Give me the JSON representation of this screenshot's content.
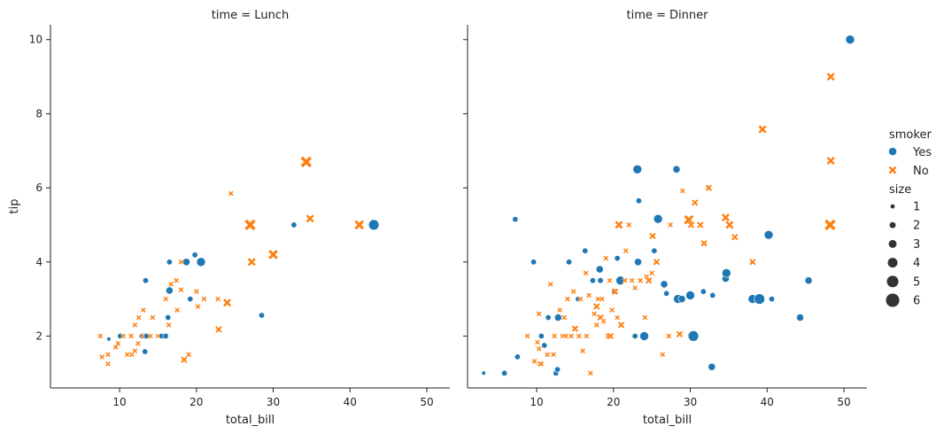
{
  "chart_data": {
    "type": "scatter",
    "x_label": "total_bill",
    "y_label": "tip",
    "x_range": [
      1,
      53
    ],
    "y_range": [
      0.6,
      10.4
    ],
    "x_ticks": [
      "10",
      "20",
      "30",
      "40",
      "50"
    ],
    "y_ticks": [
      "2",
      "4",
      "6",
      "8",
      "10"
    ],
    "colors": {
      "Yes": "#1f77b4",
      "No": "#ff7f0e"
    },
    "legend": {
      "hue_title": "smoker",
      "hue_entries": [
        "Yes",
        "No"
      ],
      "size_title": "size",
      "size_entries": [
        "1",
        "2",
        "3",
        "4",
        "5",
        "6"
      ]
    },
    "panels": [
      {
        "title": "time = Lunch",
        "points": [
          [
            7.5,
            2,
            "No",
            2
          ],
          [
            7.7,
            1.44,
            "No",
            2
          ],
          [
            8.5,
            1.25,
            "No",
            2
          ],
          [
            8.5,
            1.5,
            "No",
            2
          ],
          [
            8.6,
            1.92,
            "Yes",
            1
          ],
          [
            9.5,
            1.7,
            "No",
            2
          ],
          [
            9.8,
            1.8,
            "No",
            2
          ],
          [
            10.1,
            2,
            "Yes",
            2
          ],
          [
            10.5,
            2,
            "No",
            2
          ],
          [
            11,
            1.5,
            "No",
            2
          ],
          [
            11.5,
            2,
            "No",
            2
          ],
          [
            11.6,
            1.5,
            "No",
            2
          ],
          [
            12,
            1.6,
            "No",
            2
          ],
          [
            12,
            2.3,
            "No",
            2
          ],
          [
            12.4,
            1.8,
            "No",
            2
          ],
          [
            12.5,
            2.5,
            "No",
            2
          ],
          [
            12.9,
            2,
            "Yes",
            2
          ],
          [
            13,
            2,
            "No",
            2
          ],
          [
            13.1,
            2.7,
            "No",
            2
          ],
          [
            13.3,
            1.58,
            "Yes",
            2
          ],
          [
            13.4,
            3.5,
            "Yes",
            2
          ],
          [
            13.5,
            2,
            "Yes",
            2
          ],
          [
            14,
            2,
            "No",
            2
          ],
          [
            14.3,
            2.5,
            "No",
            2
          ],
          [
            15,
            2,
            "No",
            2
          ],
          [
            15.5,
            2,
            "Yes",
            2
          ],
          [
            16,
            2,
            "Yes",
            2
          ],
          [
            16,
            3,
            "No",
            2
          ],
          [
            16.3,
            2.5,
            "Yes",
            2
          ],
          [
            16.4,
            2.3,
            "No",
            2
          ],
          [
            16.5,
            4,
            "Yes",
            2
          ],
          [
            16.5,
            3.23,
            "Yes",
            3
          ],
          [
            16.7,
            3.4,
            "No",
            2
          ],
          [
            17.4,
            3.5,
            "No",
            2
          ],
          [
            17.5,
            2.7,
            "No",
            2
          ],
          [
            18,
            4,
            "No",
            2
          ],
          [
            18,
            3.25,
            "No",
            2
          ],
          [
            18.4,
            1.36,
            "No",
            3
          ],
          [
            18.7,
            4,
            "Yes",
            3
          ],
          [
            19,
            1.5,
            "No",
            2
          ],
          [
            19.2,
            3,
            "Yes",
            2
          ],
          [
            19.8,
            4.19,
            "Yes",
            2
          ],
          [
            20,
            3.2,
            "No",
            2
          ],
          [
            20.2,
            2.8,
            "No",
            2
          ],
          [
            20.6,
            4,
            "Yes",
            4
          ],
          [
            21,
            3,
            "No",
            2
          ],
          [
            22.8,
            3,
            "No",
            2
          ],
          [
            22.9,
            2.18,
            "No",
            3
          ],
          [
            24,
            2.9,
            "No",
            4
          ],
          [
            24.5,
            5.85,
            "No",
            2
          ],
          [
            27,
            5,
            "No",
            6
          ],
          [
            27.2,
            4,
            "No",
            4
          ],
          [
            28.5,
            2.56,
            "Yes",
            2
          ],
          [
            30,
            4.2,
            "No",
            5
          ],
          [
            32.7,
            5,
            "Yes",
            2
          ],
          [
            34.3,
            6.7,
            "No",
            6
          ],
          [
            34.8,
            5.17,
            "No",
            4
          ],
          [
            41.2,
            5,
            "No",
            5
          ],
          [
            43.1,
            5,
            "Yes",
            5
          ]
        ]
      },
      {
        "title": "time = Dinner",
        "points": [
          [
            3.1,
            1,
            "Yes",
            1
          ],
          [
            5.8,
            1,
            "Yes",
            2
          ],
          [
            7.2,
            5.15,
            "Yes",
            2
          ],
          [
            7.5,
            1.44,
            "Yes",
            2
          ],
          [
            8.8,
            2,
            "No",
            2
          ],
          [
            9.6,
            4,
            "Yes",
            2
          ],
          [
            9.7,
            1.32,
            "No",
            2
          ],
          [
            10.3,
            1.66,
            "No",
            2
          ],
          [
            10.4,
            1.25,
            "No",
            2
          ],
          [
            10.6,
            1.25,
            "No",
            2
          ],
          [
            10.1,
            1.83,
            "No",
            2
          ],
          [
            10.3,
            2.6,
            "No",
            2
          ],
          [
            10.6,
            2,
            "Yes",
            2
          ],
          [
            11,
            1.75,
            "Yes",
            2
          ],
          [
            11.4,
            1.5,
            "No",
            2
          ],
          [
            11.5,
            2.5,
            "Yes",
            2
          ],
          [
            11.8,
            3.4,
            "No",
            2
          ],
          [
            12.2,
            1.5,
            "No",
            2
          ],
          [
            12.3,
            2,
            "No",
            2
          ],
          [
            12.5,
            1,
            "Yes",
            2
          ],
          [
            12.7,
            1.1,
            "Yes",
            2
          ],
          [
            12.8,
            2.5,
            "Yes",
            3
          ],
          [
            13,
            2.7,
            "No",
            2
          ],
          [
            13.4,
            2,
            "No",
            2
          ],
          [
            13.6,
            2.5,
            "No",
            2
          ],
          [
            13.8,
            2,
            "No",
            2
          ],
          [
            14,
            3,
            "No",
            2
          ],
          [
            14.2,
            4,
            "Yes",
            2
          ],
          [
            14.5,
            2,
            "No",
            2
          ],
          [
            14.8,
            3.2,
            "No",
            2
          ],
          [
            15,
            2.2,
            "No",
            3
          ],
          [
            15.4,
            3,
            "Yes",
            2
          ],
          [
            15.5,
            2,
            "No",
            2
          ],
          [
            15.7,
            3,
            "No",
            2
          ],
          [
            16,
            1.6,
            "No",
            2
          ],
          [
            16.3,
            4.3,
            "Yes",
            2
          ],
          [
            16.4,
            3.7,
            "No",
            2
          ],
          [
            16.5,
            2,
            "No",
            2
          ],
          [
            16.8,
            3.1,
            "No",
            2
          ],
          [
            17,
            1.0,
            "No",
            2
          ],
          [
            17.3,
            3.5,
            "Yes",
            2
          ],
          [
            17.5,
            2.6,
            "No",
            2
          ],
          [
            17.8,
            2.3,
            "No",
            2
          ],
          [
            17.8,
            2.8,
            "No",
            3
          ],
          [
            18,
            3,
            "No",
            2
          ],
          [
            18.2,
            3.8,
            "Yes",
            3
          ],
          [
            18.3,
            3.5,
            "Yes",
            2
          ],
          [
            18.3,
            2.5,
            "No",
            3
          ],
          [
            18.5,
            3,
            "No",
            2
          ],
          [
            18.7,
            2.4,
            "No",
            2
          ],
          [
            19,
            4.1,
            "No",
            2
          ],
          [
            19.3,
            2,
            "No",
            2
          ],
          [
            19.5,
            3.5,
            "No",
            2
          ],
          [
            19.6,
            2,
            "No",
            3
          ],
          [
            19.8,
            2.7,
            "No",
            2
          ],
          [
            20.1,
            3.2,
            "Yes",
            2
          ],
          [
            20.2,
            3.2,
            "No",
            3
          ],
          [
            20.5,
            4.1,
            "Yes",
            2
          ],
          [
            20.5,
            2.5,
            "No",
            2
          ],
          [
            20.7,
            5,
            "No",
            4
          ],
          [
            20.8,
            3.5,
            "No",
            2
          ],
          [
            20.9,
            3.5,
            "Yes",
            4
          ],
          [
            21,
            2.3,
            "No",
            3
          ],
          [
            21.5,
            3.5,
            "No",
            2
          ],
          [
            21.6,
            4.3,
            "No",
            2
          ],
          [
            22,
            5,
            "No",
            2
          ],
          [
            22.4,
            3.5,
            "No",
            2
          ],
          [
            22.8,
            2,
            "Yes",
            2
          ],
          [
            22.8,
            3.3,
            "No",
            2
          ],
          [
            23.1,
            6.5,
            "Yes",
            4
          ],
          [
            23.2,
            4,
            "Yes",
            3
          ],
          [
            23.3,
            5.65,
            "Yes",
            2
          ],
          [
            23.5,
            3.5,
            "No",
            2
          ],
          [
            24,
            2,
            "Yes",
            4
          ],
          [
            24.1,
            2.5,
            "No",
            2
          ],
          [
            24.3,
            3.6,
            "No",
            2
          ],
          [
            24.6,
            3.5,
            "No",
            3
          ],
          [
            25,
            3.7,
            "No",
            2
          ],
          [
            25.1,
            4.7,
            "No",
            3
          ],
          [
            25.3,
            4.3,
            "Yes",
            2
          ],
          [
            25.6,
            4,
            "No",
            3
          ],
          [
            25.8,
            5.16,
            "Yes",
            4
          ],
          [
            26.4,
            1.5,
            "No",
            2
          ],
          [
            26.6,
            3.4,
            "Yes",
            3
          ],
          [
            26.9,
            3.15,
            "Yes",
            2
          ],
          [
            27.2,
            2,
            "No",
            2
          ],
          [
            27.4,
            5,
            "No",
            2
          ],
          [
            28.2,
            6.5,
            "Yes",
            3
          ],
          [
            28.4,
            3,
            "Yes",
            4
          ],
          [
            28.6,
            2.05,
            "No",
            3
          ],
          [
            28.9,
            3,
            "Yes",
            3
          ],
          [
            29,
            5.92,
            "No",
            2
          ],
          [
            29.8,
            5.14,
            "No",
            5
          ],
          [
            30,
            3.1,
            "Yes",
            4
          ],
          [
            30.1,
            5,
            "No",
            3
          ],
          [
            30.4,
            2,
            "Yes",
            5
          ],
          [
            30.6,
            5.6,
            "No",
            3
          ],
          [
            31.3,
            5,
            "No",
            3
          ],
          [
            31.7,
            3.2,
            "Yes",
            2
          ],
          [
            31.8,
            4.5,
            "No",
            3
          ],
          [
            32.4,
            6,
            "No",
            3
          ],
          [
            32.8,
            1.17,
            "Yes",
            3
          ],
          [
            32.9,
            3.1,
            "Yes",
            2
          ],
          [
            34.6,
            3.55,
            "Yes",
            3
          ],
          [
            34.6,
            5.2,
            "No",
            4
          ],
          [
            34.7,
            3.7,
            "Yes",
            4
          ],
          [
            35.1,
            5,
            "No",
            4
          ],
          [
            35.8,
            4.67,
            "No",
            3
          ],
          [
            38.1,
            4,
            "No",
            3
          ],
          [
            38.1,
            3,
            "Yes",
            4
          ],
          [
            39,
            3,
            "Yes",
            5
          ],
          [
            39.4,
            7.58,
            "No",
            4
          ],
          [
            40.2,
            4.73,
            "Yes",
            4
          ],
          [
            40.6,
            3,
            "Yes",
            2
          ],
          [
            44.3,
            2.5,
            "Yes",
            3
          ],
          [
            45.4,
            3.5,
            "Yes",
            3
          ],
          [
            48.2,
            5,
            "No",
            6
          ],
          [
            48.3,
            6.73,
            "No",
            4
          ],
          [
            48.3,
            9,
            "No",
            4
          ],
          [
            50.8,
            10,
            "Yes",
            4
          ]
        ]
      }
    ]
  }
}
